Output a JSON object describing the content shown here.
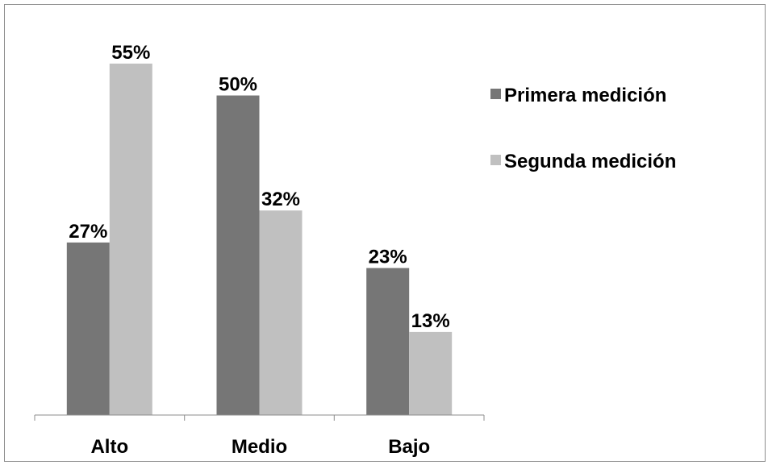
{
  "chart_data": {
    "type": "bar",
    "categories": [
      "Alto",
      "Medio",
      "Bajo"
    ],
    "series": [
      {
        "name": "Primera medición",
        "values": [
          27,
          50,
          23
        ],
        "labels": [
          "27%",
          "50%",
          "23%"
        ],
        "color": "#767676"
      },
      {
        "name": "Segunda medición",
        "values": [
          55,
          32,
          13
        ],
        "labels": [
          "55%",
          "32%",
          "13%"
        ],
        "color": "#c0c0c0"
      }
    ],
    "title": "",
    "xlabel": "",
    "ylabel": "",
    "ylim": [
      0,
      60
    ],
    "unit": "%",
    "grid": false,
    "legend_position": "right"
  }
}
